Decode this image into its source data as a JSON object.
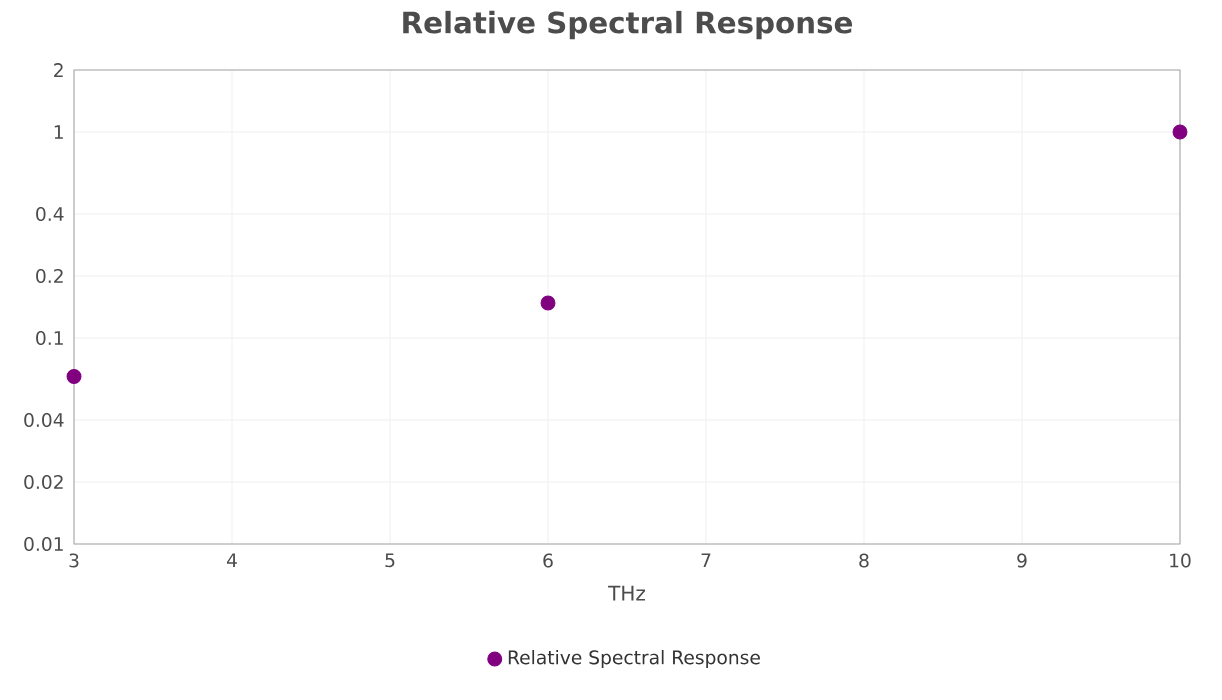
{
  "chart_data": {
    "type": "scatter",
    "title": "Relative Spectral Response",
    "xlabel": "THz",
    "x": [
      3,
      6,
      10
    ],
    "series": [
      {
        "name": "Relative Spectral Response",
        "color": "#800080",
        "values": [
          0.065,
          0.148,
          1
        ]
      }
    ],
    "xlim": [
      3,
      10
    ],
    "xticks": [
      3,
      4,
      5,
      6,
      7,
      8,
      9,
      10
    ],
    "ylim": [
      0.01,
      2
    ],
    "yticks": [
      0.01,
      0.02,
      0.04,
      0.1,
      0.2,
      0.4,
      1,
      2
    ],
    "log": "y",
    "grid": true,
    "legend": "bottom",
    "marker": "circle"
  }
}
